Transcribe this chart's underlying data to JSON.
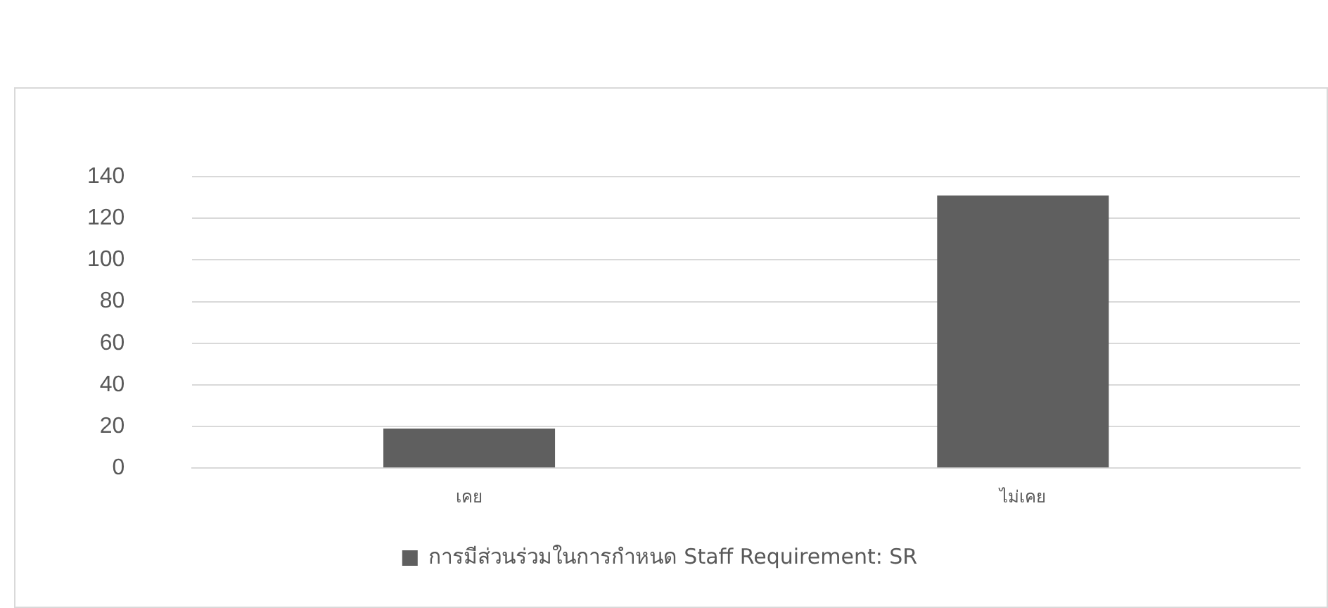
{
  "chart_data": {
    "type": "bar",
    "categories": [
      "เคย",
      "ไม่เคย"
    ],
    "series": [
      {
        "name": "การมีส่วนร่วมในการกำหนด Staff Requirement: SR",
        "color": "#5f5f5f",
        "values": [
          19,
          131
        ]
      }
    ],
    "ylim": [
      0,
      140
    ],
    "yticks": [
      0,
      20,
      40,
      60,
      80,
      100,
      120,
      140
    ],
    "grid": "y",
    "legend": "bottom"
  }
}
